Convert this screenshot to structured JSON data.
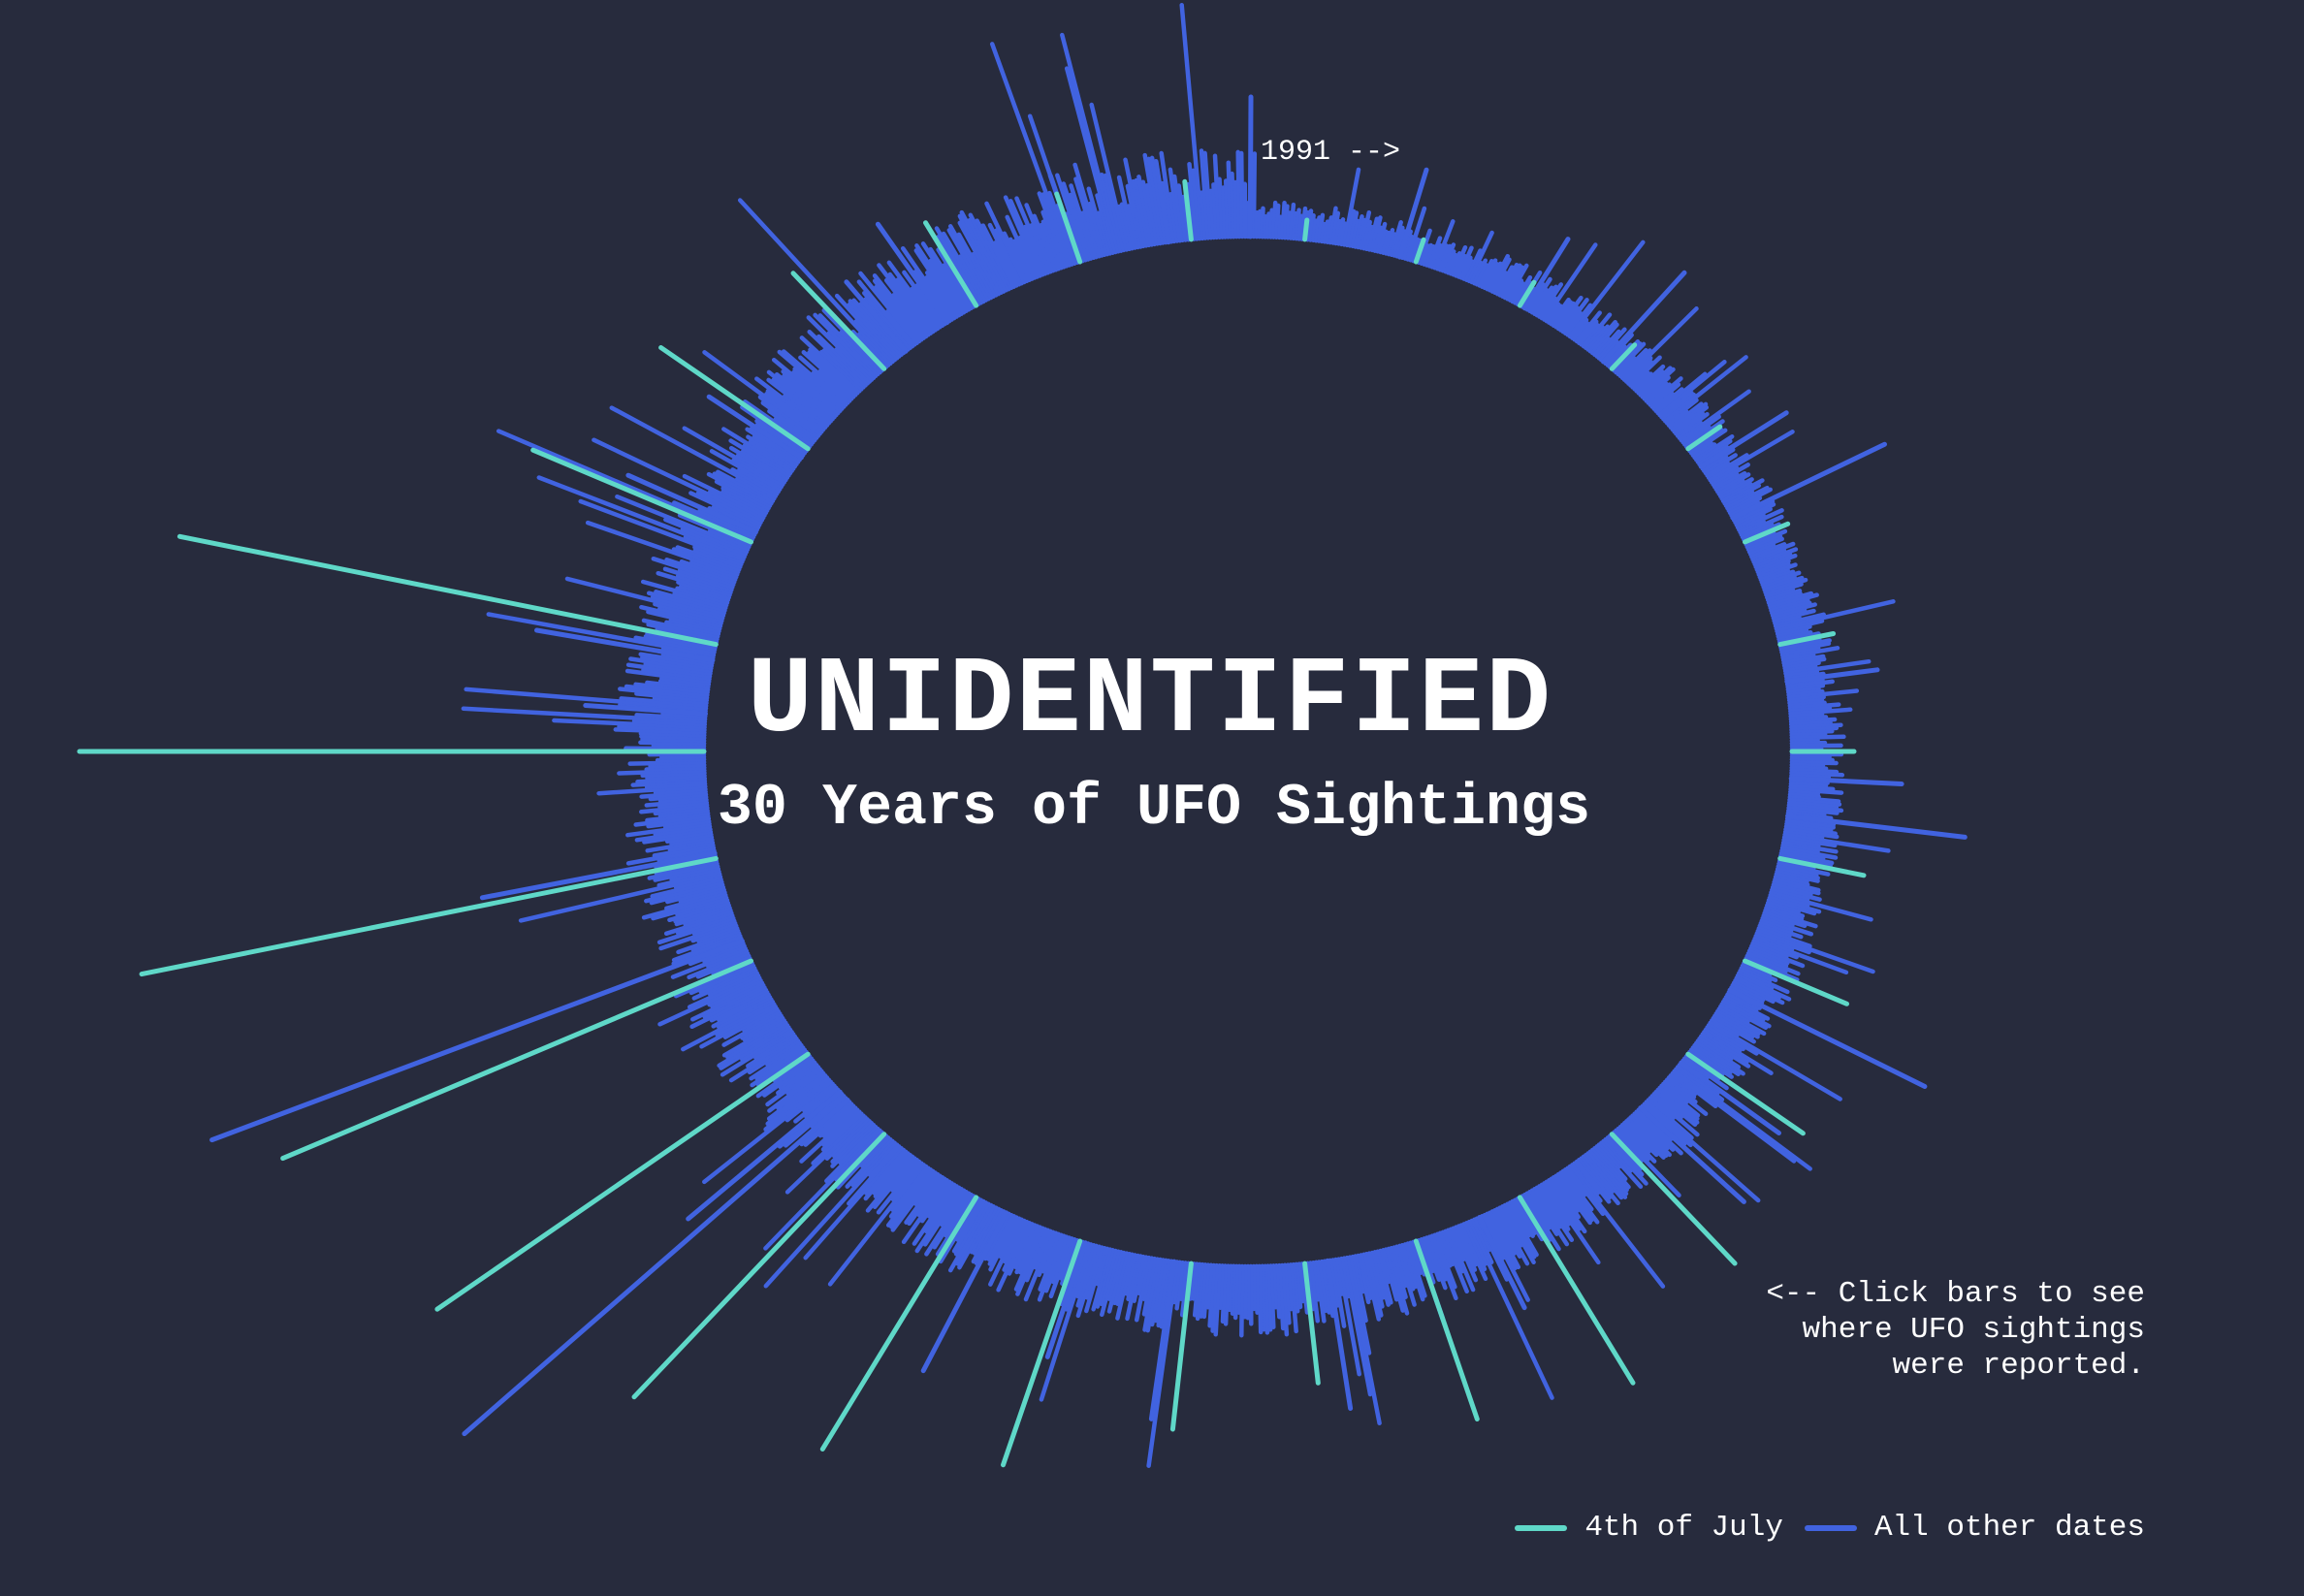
{
  "colors": {
    "background": "#272b3d",
    "july4": "#5fd8c8",
    "other": "#4163e0",
    "text": "#ffffff"
  },
  "header": {
    "title": "UNIDENTIFIED",
    "subtitle": "30 Years of UFO Sightings"
  },
  "start_marker": "1991 -->",
  "hint": {
    "lines": [
      "<-- Click bars to see",
      "where UFO sightings",
      "were reported."
    ]
  },
  "legend": {
    "items": [
      {
        "label": "4th of July",
        "color": "#5fd8c8"
      },
      {
        "label": "All other dates",
        "color": "#4163e0"
      }
    ]
  },
  "chart_data": {
    "type": "radial-bar",
    "start_label": "1991",
    "direction": "clockwise",
    "years": 30,
    "base_level": 10,
    "series": [
      {
        "name": "4th of July",
        "color": "#5fd8c8"
      },
      {
        "name": "All other dates",
        "color": "#4163e0"
      }
    ],
    "july4_values": [
      8,
      10,
      12,
      15,
      18,
      22,
      26,
      30,
      42,
      55,
      70,
      90,
      110,
      95,
      60,
      84,
      120,
      150,
      185,
      230,
      260,
      300,
      320,
      280,
      120,
      90,
      66,
      48,
      35,
      28
    ],
    "spikes": [
      {
        "year_frac": 0.02,
        "value": 70
      },
      {
        "year_frac": 0.35,
        "value": 45
      },
      {
        "year_frac": 0.55,
        "value": 40
      },
      {
        "year_frac": 0.4,
        "value": 60
      },
      {
        "year_frac": 0.7,
        "value": 50
      },
      {
        "year_frac": 0.25,
        "value": 85
      },
      {
        "year_frac": 0.85,
        "value": 45
      },
      {
        "year_frac": 0.75,
        "value": 55
      },
      {
        "year_frac": 0.1,
        "value": 90
      },
      {
        "year_frac": 0.8,
        "value": 110
      },
      {
        "year_frac": 0.6,
        "value": 60
      },
      {
        "year_frac": 0.15,
        "value": 70
      },
      {
        "year_frac": 0.9,
        "value": 50
      },
      {
        "year_frac": 0.5,
        "value": 40
      },
      {
        "year_frac": 0.3,
        "value": 75
      },
      {
        "year_frac": 0.65,
        "value": 80
      },
      {
        "year_frac": 0.45,
        "value": 60
      },
      {
        "year_frac": 0.2,
        "value": 90
      },
      {
        "year_frac": 0.95,
        "value": 260
      },
      {
        "year_frac": 0.05,
        "value": 100
      },
      {
        "year_frac": 0.7,
        "value": 290
      },
      {
        "year_frac": 0.55,
        "value": 120
      },
      {
        "year_frac": 0.85,
        "value": 60
      },
      {
        "year_frac": 0.35,
        "value": 90
      },
      {
        "year_frac": 0.6,
        "value": 70
      },
      {
        "year_frac": 0.4,
        "value": 55
      },
      {
        "year_frac": 0.75,
        "value": 45
      },
      {
        "year_frac": 0.2,
        "value": 60
      },
      {
        "year_frac": 0.5,
        "value": 45
      },
      {
        "year_frac": 0.3,
        "value": 40
      }
    ]
  }
}
